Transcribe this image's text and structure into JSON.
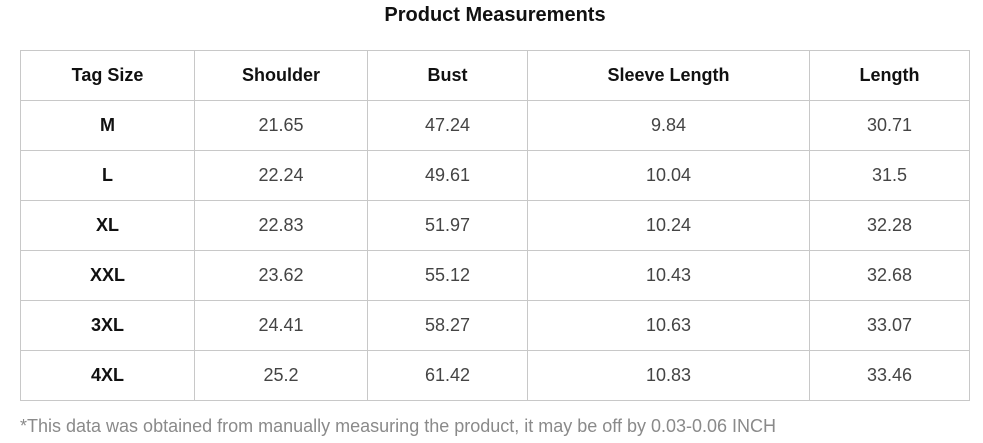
{
  "title": "Product Measurements",
  "table": {
    "headers": [
      "Tag Size",
      "Shoulder",
      "Bust",
      "Sleeve Length",
      "Length"
    ],
    "rows": [
      [
        "M",
        "21.65",
        "47.24",
        "9.84",
        "30.71"
      ],
      [
        "L",
        "22.24",
        "49.61",
        "10.04",
        "31.5"
      ],
      [
        "XL",
        "22.83",
        "51.97",
        "10.24",
        "32.28"
      ],
      [
        "XXL",
        "23.62",
        "55.12",
        "10.43",
        "32.68"
      ],
      [
        "3XL",
        "24.41",
        "58.27",
        "10.63",
        "33.07"
      ],
      [
        "4XL",
        "25.2",
        "61.42",
        "10.83",
        "33.46"
      ]
    ]
  },
  "note": "*This data was obtained from manually measuring the product, it may be off by 0.03-0.06 INCH"
}
